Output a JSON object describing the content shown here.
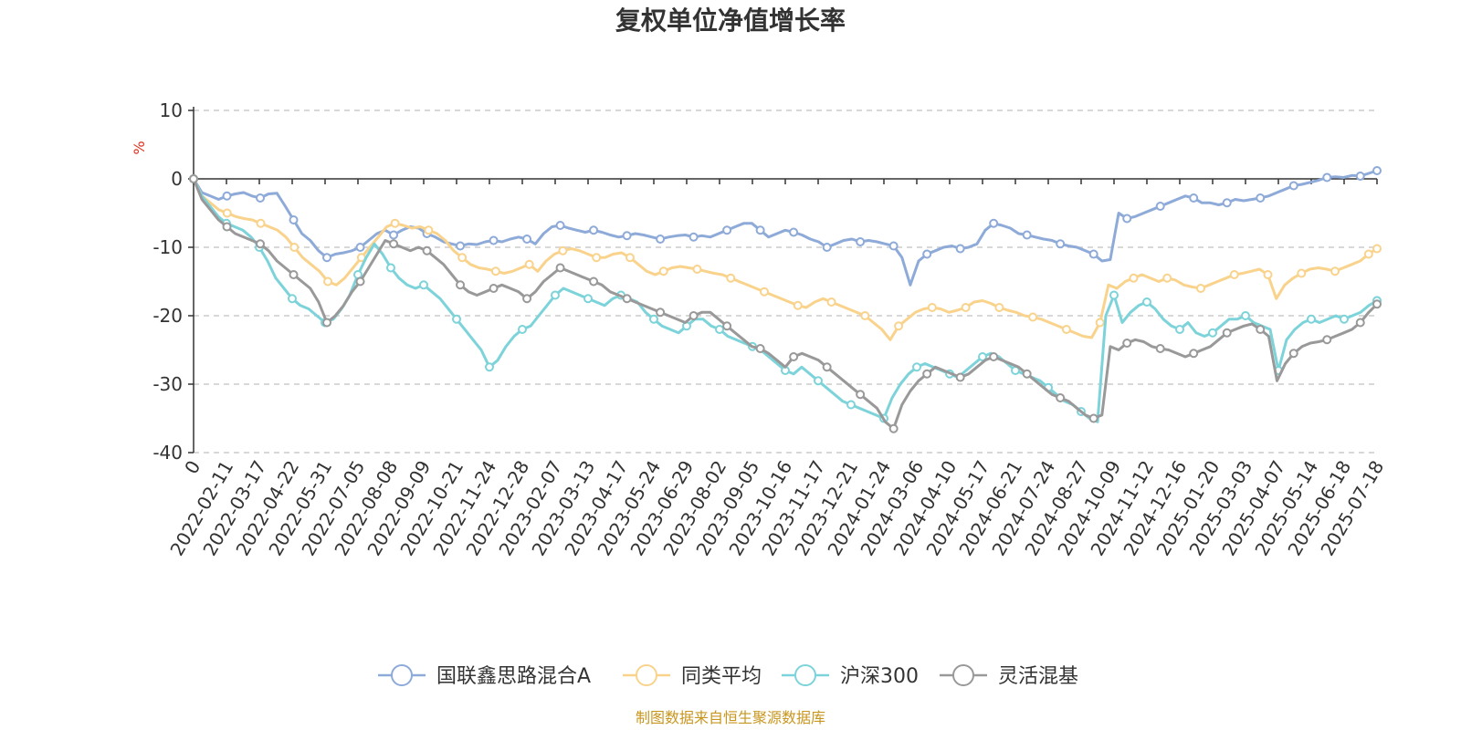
{
  "chart_data": {
    "type": "line",
    "title": "复权单位净值增长率",
    "y_unit": "%",
    "ylim": [
      -40,
      10
    ],
    "yticks": [
      "10",
      "0",
      "-10",
      "-20",
      "-30",
      "-40"
    ],
    "x_labels": [
      "0",
      "2022-02-11",
      "2022-03-17",
      "2022-04-22",
      "2022-05-31",
      "2022-07-05",
      "2022-08-08",
      "2022-09-09",
      "2022-10-21",
      "2022-11-24",
      "2022-12-28",
      "2023-02-07",
      "2023-03-13",
      "2023-04-17",
      "2023-05-24",
      "2023-06-29",
      "2023-08-02",
      "2023-09-05",
      "2023-10-16",
      "2023-11-17",
      "2023-12-21",
      "2024-01-24",
      "2024-03-06",
      "2024-04-10",
      "2024-05-17",
      "2024-06-21",
      "2024-07-24",
      "2024-08-27",
      "2024-10-09",
      "2024-11-12",
      "2024-12-16",
      "2025-01-20",
      "2025-03-03",
      "2025-04-07",
      "2025-05-14",
      "2025-06-18",
      "2025-07-18"
    ],
    "grid": true,
    "legend_position": "bottom",
    "series": [
      {
        "name": "国联鑫思路混合A",
        "color": "#8eaad8",
        "values": [
          0,
          -2,
          -2.5,
          -3,
          -2.5,
          -2.2,
          -2,
          -2.5,
          -2.8,
          -2.2,
          -2.1,
          -4,
          -6,
          -8,
          -9,
          -10.5,
          -11.5,
          -11,
          -10.8,
          -10.5,
          -10,
          -9,
          -8,
          -7.5,
          -8.2,
          -7.5,
          -7,
          -7.2,
          -8,
          -8.5,
          -9.2,
          -9.5,
          -9.8,
          -9.5,
          -9.6,
          -9.2,
          -9,
          -9.2,
          -8.8,
          -8.5,
          -8.8,
          -9.5,
          -8,
          -7,
          -6.8,
          -7.2,
          -7.5,
          -7.8,
          -7.5,
          -7.8,
          -8.2,
          -8.5,
          -8.3,
          -8,
          -8.2,
          -8.5,
          -8.8,
          -8.5,
          -8.3,
          -8.2,
          -8.5,
          -8.3,
          -8.5,
          -8,
          -7.5,
          -7,
          -6.5,
          -6.5,
          -7.5,
          -8.5,
          -8,
          -7.5,
          -7.8,
          -8.2,
          -8.8,
          -9.2,
          -10,
          -9.5,
          -9,
          -8.8,
          -9.2,
          -9,
          -9.2,
          -9.5,
          -9.8,
          -11.5,
          -15.5,
          -12,
          -11,
          -10.5,
          -10,
          -9.8,
          -10.2,
          -10,
          -9.5,
          -7.5,
          -6.5,
          -6.8,
          -7.2,
          -8,
          -8.2,
          -8.5,
          -8.8,
          -9,
          -9.5,
          -9.8,
          -10,
          -10.5,
          -11,
          -12,
          -11.8,
          -5,
          -5.8,
          -5.5,
          -5,
          -4.5,
          -4,
          -3.5,
          -3,
          -2.5,
          -2.8,
          -3.5,
          -3.5,
          -3.8,
          -3.5,
          -3,
          -3.2,
          -3,
          -2.8,
          -2.5,
          -2,
          -1.5,
          -1,
          -0.8,
          -0.5,
          -0.2,
          0.2,
          0.3,
          0.2,
          0.5,
          0.4,
          0.8,
          1.2
        ]
      },
      {
        "name": "同类平均",
        "color": "#f9d38c",
        "values": [
          0,
          -2.5,
          -3.5,
          -4.5,
          -5,
          -5.5,
          -5.8,
          -6,
          -6.5,
          -7,
          -7.5,
          -8.5,
          -10,
          -11.5,
          -12.5,
          -13.5,
          -15,
          -15.5,
          -14.5,
          -13,
          -11.5,
          -10,
          -8.5,
          -7,
          -6.5,
          -6.8,
          -7.2,
          -7,
          -7.5,
          -8,
          -9,
          -10.5,
          -11.5,
          -12.5,
          -13,
          -13.2,
          -13.5,
          -13.8,
          -13.5,
          -13,
          -12.5,
          -13.5,
          -12,
          -11,
          -10.5,
          -10.2,
          -10.5,
          -11,
          -11.5,
          -11.5,
          -11,
          -10.8,
          -11.5,
          -12.5,
          -13.5,
          -14,
          -13.5,
          -13,
          -12.8,
          -13,
          -13.2,
          -13.5,
          -13.8,
          -14,
          -14.5,
          -15,
          -15.5,
          -16,
          -16.5,
          -17,
          -17.5,
          -18,
          -18.5,
          -18.8,
          -18,
          -17.5,
          -18,
          -18.5,
          -19,
          -19.5,
          -20,
          -21,
          -22,
          -23.5,
          -21.5,
          -20.5,
          -19.5,
          -19,
          -18.8,
          -19,
          -19.5,
          -19.2,
          -18.8,
          -18,
          -17.8,
          -18.2,
          -18.8,
          -19.2,
          -19.5,
          -20,
          -20.2,
          -20.5,
          -21,
          -21.5,
          -22,
          -22.5,
          -23,
          -23.2,
          -21,
          -15.5,
          -16,
          -15,
          -14.5,
          -14,
          -14.5,
          -15,
          -14.5,
          -14.8,
          -15.5,
          -15.8,
          -16,
          -15.5,
          -15,
          -14.5,
          -14,
          -13.8,
          -13.5,
          -13.2,
          -14,
          -17.5,
          -15.5,
          -14.5,
          -13.8,
          -13.2,
          -13,
          -13.2,
          -13.5,
          -13,
          -12.5,
          -12,
          -11,
          -10.2
        ]
      },
      {
        "name": "沪深300",
        "color": "#7dd3da",
        "values": [
          0,
          -2.5,
          -4,
          -5.5,
          -6.5,
          -7,
          -7.5,
          -8.5,
          -10,
          -12,
          -14.5,
          -16,
          -17.5,
          -18.5,
          -19,
          -20,
          -21,
          -20.5,
          -19,
          -17,
          -14,
          -11.5,
          -9.5,
          -11,
          -13,
          -14.5,
          -15.5,
          -16,
          -15.5,
          -16.5,
          -17.5,
          -19,
          -20.5,
          -22,
          -23.5,
          -25,
          -27.5,
          -26.5,
          -24.5,
          -23,
          -22,
          -21.5,
          -20,
          -18.5,
          -17,
          -16,
          -16.5,
          -17,
          -17.5,
          -18,
          -18.5,
          -17.5,
          -17,
          -17.5,
          -18,
          -19.5,
          -20.5,
          -21.5,
          -22,
          -22.5,
          -21.5,
          -20.5,
          -20.5,
          -21.5,
          -22,
          -23,
          -23.5,
          -24,
          -24.5,
          -25,
          -26,
          -27,
          -28,
          -28.5,
          -27.5,
          -28.5,
          -29.5,
          -30.5,
          -31.5,
          -32.5,
          -33,
          -33.5,
          -34,
          -34.5,
          -35,
          -32,
          -30,
          -28.5,
          -27.5,
          -27,
          -27.5,
          -28,
          -28.5,
          -29,
          -28,
          -27,
          -26,
          -25.5,
          -26,
          -27,
          -28,
          -28.5,
          -29,
          -29.5,
          -30.5,
          -31.5,
          -32.5,
          -33,
          -34,
          -35,
          -35.5,
          -20,
          -17,
          -21,
          -19.5,
          -18.5,
          -18,
          -19,
          -20.5,
          -21.5,
          -22,
          -21,
          -22.5,
          -23,
          -22.5,
          -21.5,
          -20.5,
          -20.5,
          -20,
          -21,
          -21.5,
          -22,
          -28,
          -23.5,
          -22,
          -21,
          -20.5,
          -21,
          -20.5,
          -20,
          -20.5,
          -20,
          -19.5,
          -18.5,
          -17.8
        ]
      },
      {
        "name": "灵活混基",
        "color": "#999999",
        "values": [
          0,
          -3,
          -4.5,
          -6,
          -7,
          -8,
          -8.5,
          -9,
          -9.5,
          -10.5,
          -12,
          -13,
          -14,
          -15,
          -16,
          -18,
          -21,
          -20,
          -18.5,
          -16.5,
          -15,
          -13,
          -11,
          -9,
          -9.5,
          -10,
          -10.5,
          -10,
          -10.5,
          -11.5,
          -12.5,
          -14,
          -15.5,
          -16.5,
          -17,
          -16.5,
          -16,
          -15.5,
          -16,
          -16.5,
          -17.5,
          -16.5,
          -15,
          -14,
          -13,
          -13.5,
          -14,
          -14.5,
          -15,
          -15.5,
          -16.5,
          -17,
          -17.5,
          -18,
          -18.5,
          -19,
          -19.5,
          -20,
          -20.5,
          -21,
          -20,
          -19.5,
          -19.5,
          -20.5,
          -21.5,
          -22.5,
          -23.5,
          -24.5,
          -24.8,
          -25.5,
          -26.5,
          -27.5,
          -26,
          -25.5,
          -26,
          -26.5,
          -27.5,
          -28.5,
          -29.5,
          -30.5,
          -31.5,
          -32.5,
          -33.5,
          -35.5,
          -36.5,
          -33,
          -31,
          -29.5,
          -28.5,
          -27.5,
          -28,
          -28.5,
          -29,
          -28.5,
          -27.5,
          -26.5,
          -26,
          -26.5,
          -27,
          -27.5,
          -28.5,
          -29.5,
          -30.5,
          -31.5,
          -32,
          -32.5,
          -33.5,
          -34.5,
          -35,
          -34.5,
          -24.5,
          -25,
          -24,
          -23.5,
          -23.8,
          -24.5,
          -24.8,
          -25,
          -25.5,
          -26,
          -25.5,
          -25,
          -24.5,
          -23.5,
          -22.5,
          -22,
          -21.5,
          -21.2,
          -22,
          -23,
          -29.5,
          -27,
          -25.5,
          -24.5,
          -24,
          -23.8,
          -23.5,
          -23,
          -22.5,
          -22,
          -21,
          -19.5,
          -18.3
        ]
      }
    ]
  },
  "source": "制图数据来自恒生聚源数据库"
}
